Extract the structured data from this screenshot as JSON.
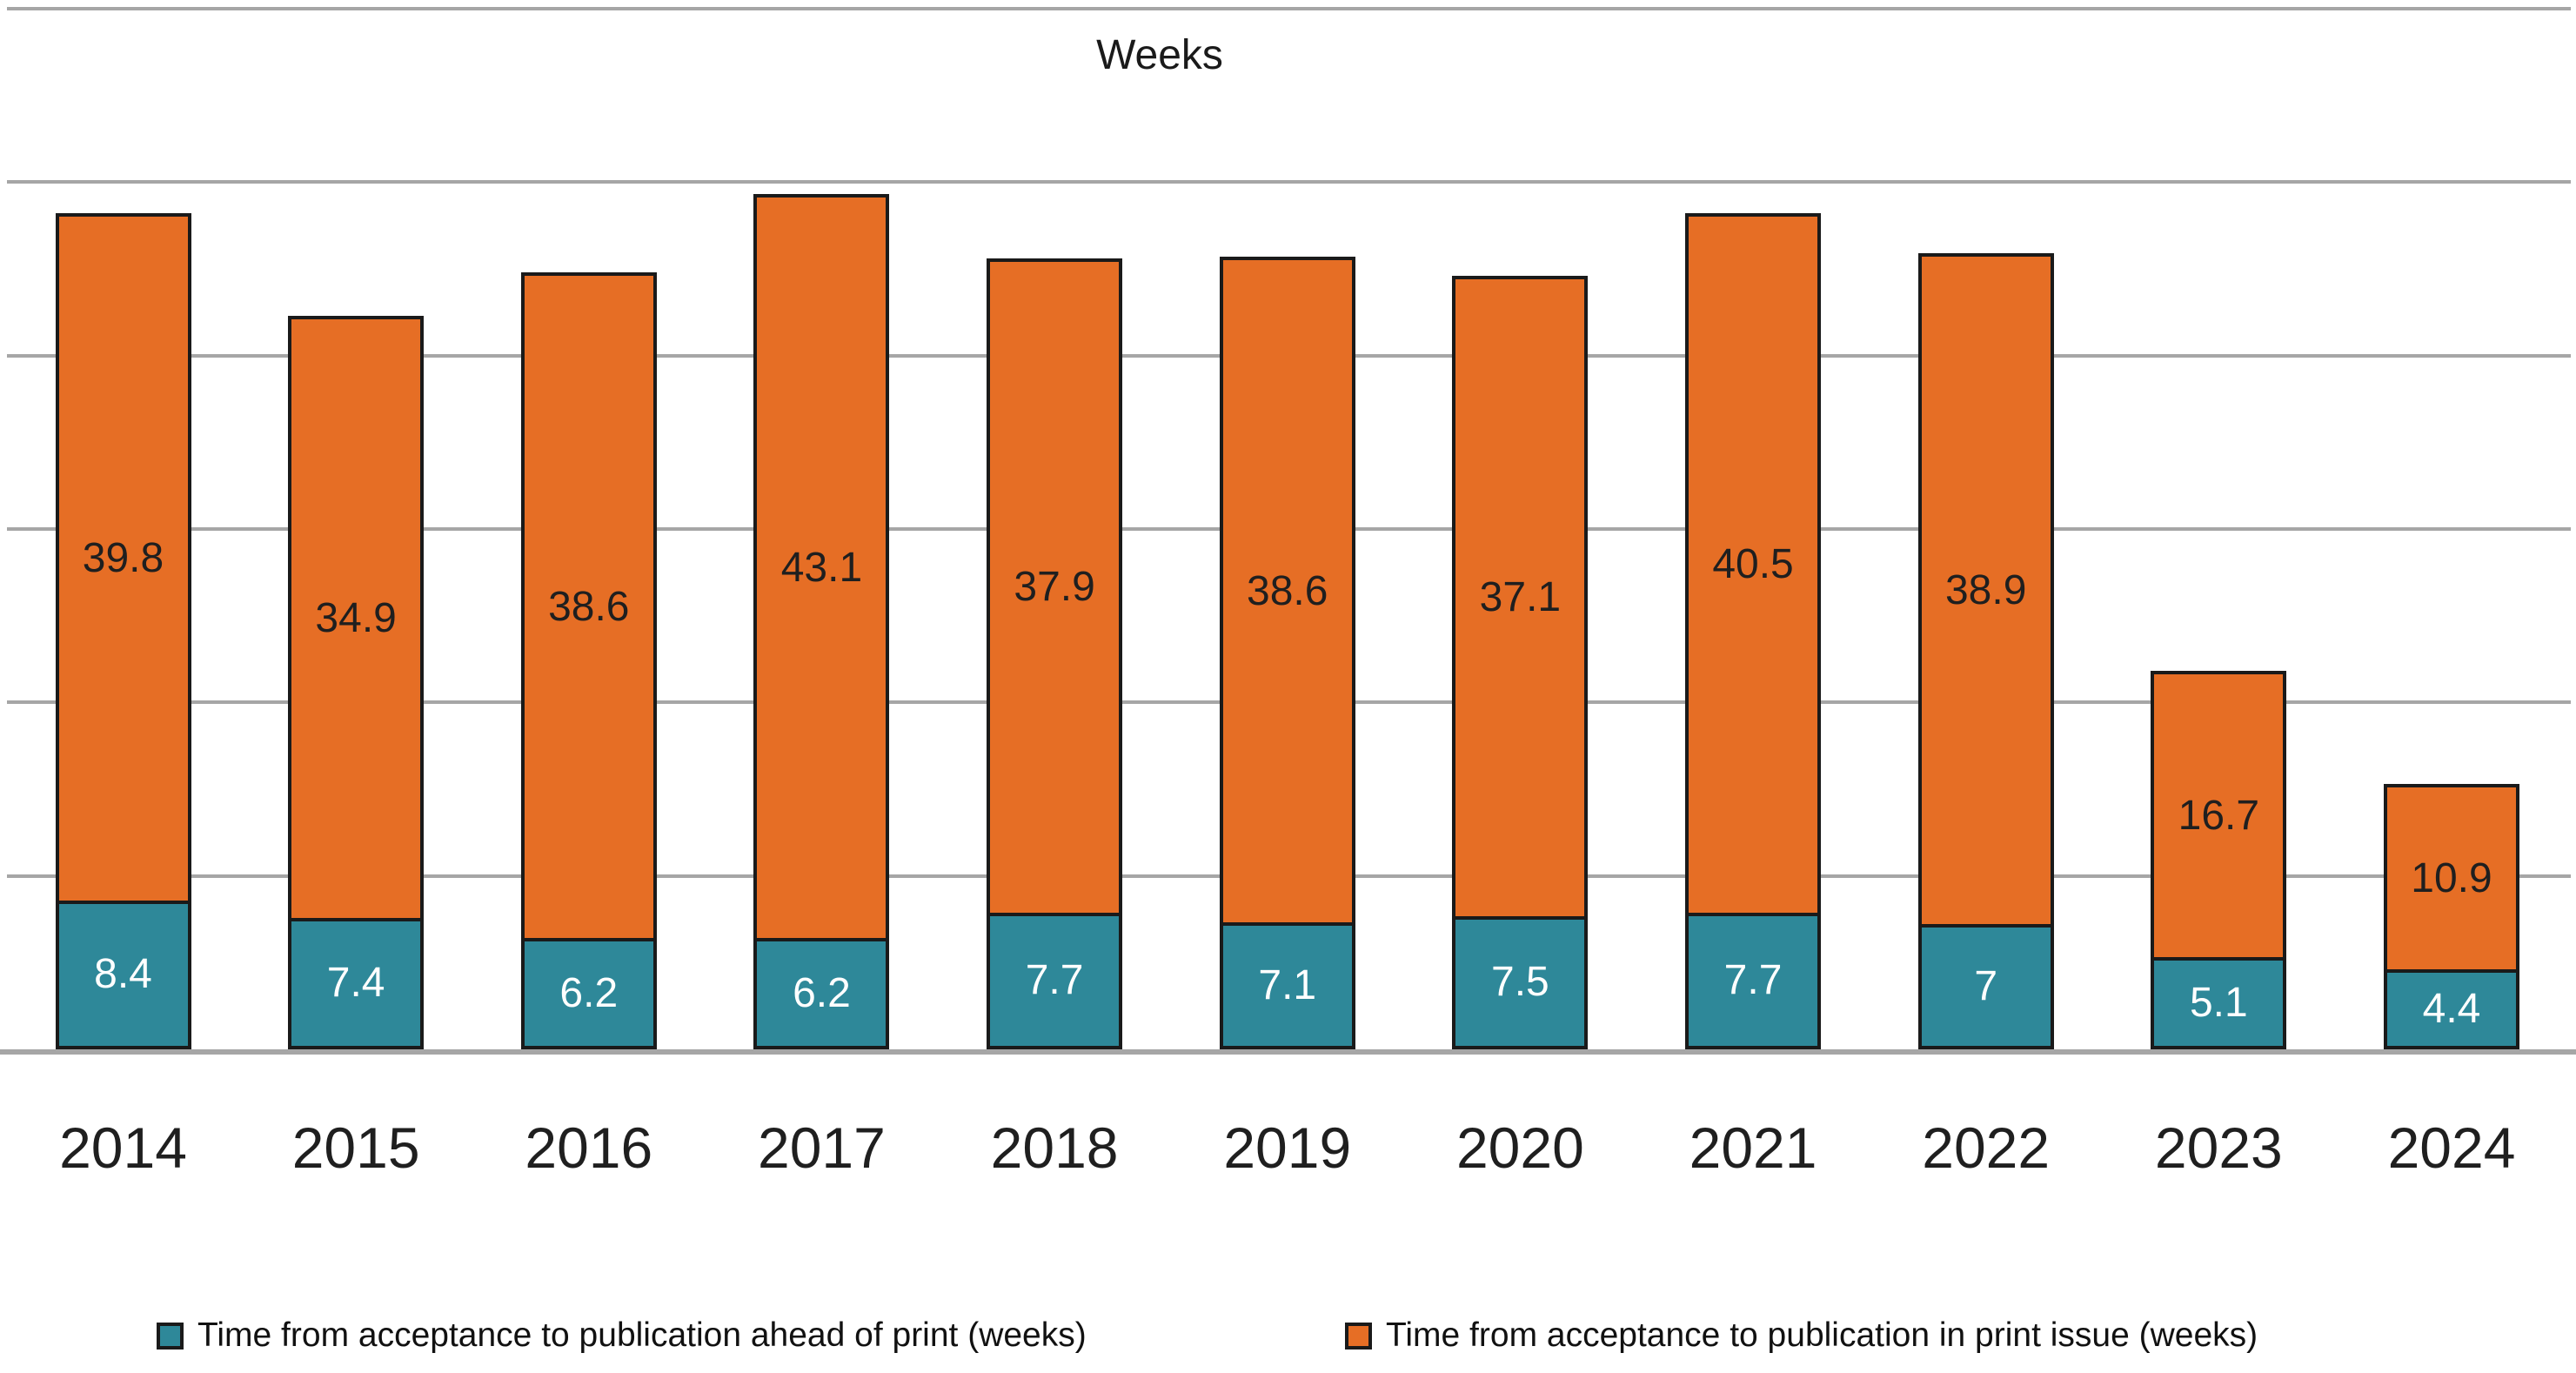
{
  "title": "Weeks",
  "chart_data": {
    "type": "bar",
    "stacked": true,
    "title": "Weeks",
    "xlabel": "",
    "ylabel": "",
    "ylim": [
      0,
      60
    ],
    "gridline_step": 10,
    "grid": true,
    "y_axis_tick_labels_visible": false,
    "legend_position": "bottom",
    "categories": [
      "2014",
      "2015",
      "2016",
      "2017",
      "2018",
      "2019",
      "2020",
      "2021",
      "2022",
      "2023",
      "2024"
    ],
    "series": [
      {
        "name": "Time from acceptance to publication ahead of print (weeks)",
        "values": [
          8.4,
          7.4,
          6.2,
          6.2,
          7.7,
          7.1,
          7.5,
          7.7,
          7,
          5.1,
          4.4
        ],
        "color": "#2e8899",
        "label_color": "#ffffff"
      },
      {
        "name": "Time from acceptance to publication in print issue (weeks)",
        "values": [
          39.8,
          34.9,
          38.6,
          43.1,
          37.9,
          38.6,
          37.1,
          40.5,
          38.9,
          16.7,
          10.9
        ],
        "color": "#e66e25",
        "label_color": "#1f1f1f"
      }
    ],
    "bar_outline_color": "#1a1a1a",
    "gridline_color": "#a6a6a6"
  },
  "legend": {
    "items": [
      {
        "swatch_color": "#2e8899",
        "label": "Time from acceptance to publication ahead of print (weeks)"
      },
      {
        "swatch_color": "#e66e25",
        "label": "Time from acceptance to publication in print issue (weeks)"
      }
    ]
  }
}
